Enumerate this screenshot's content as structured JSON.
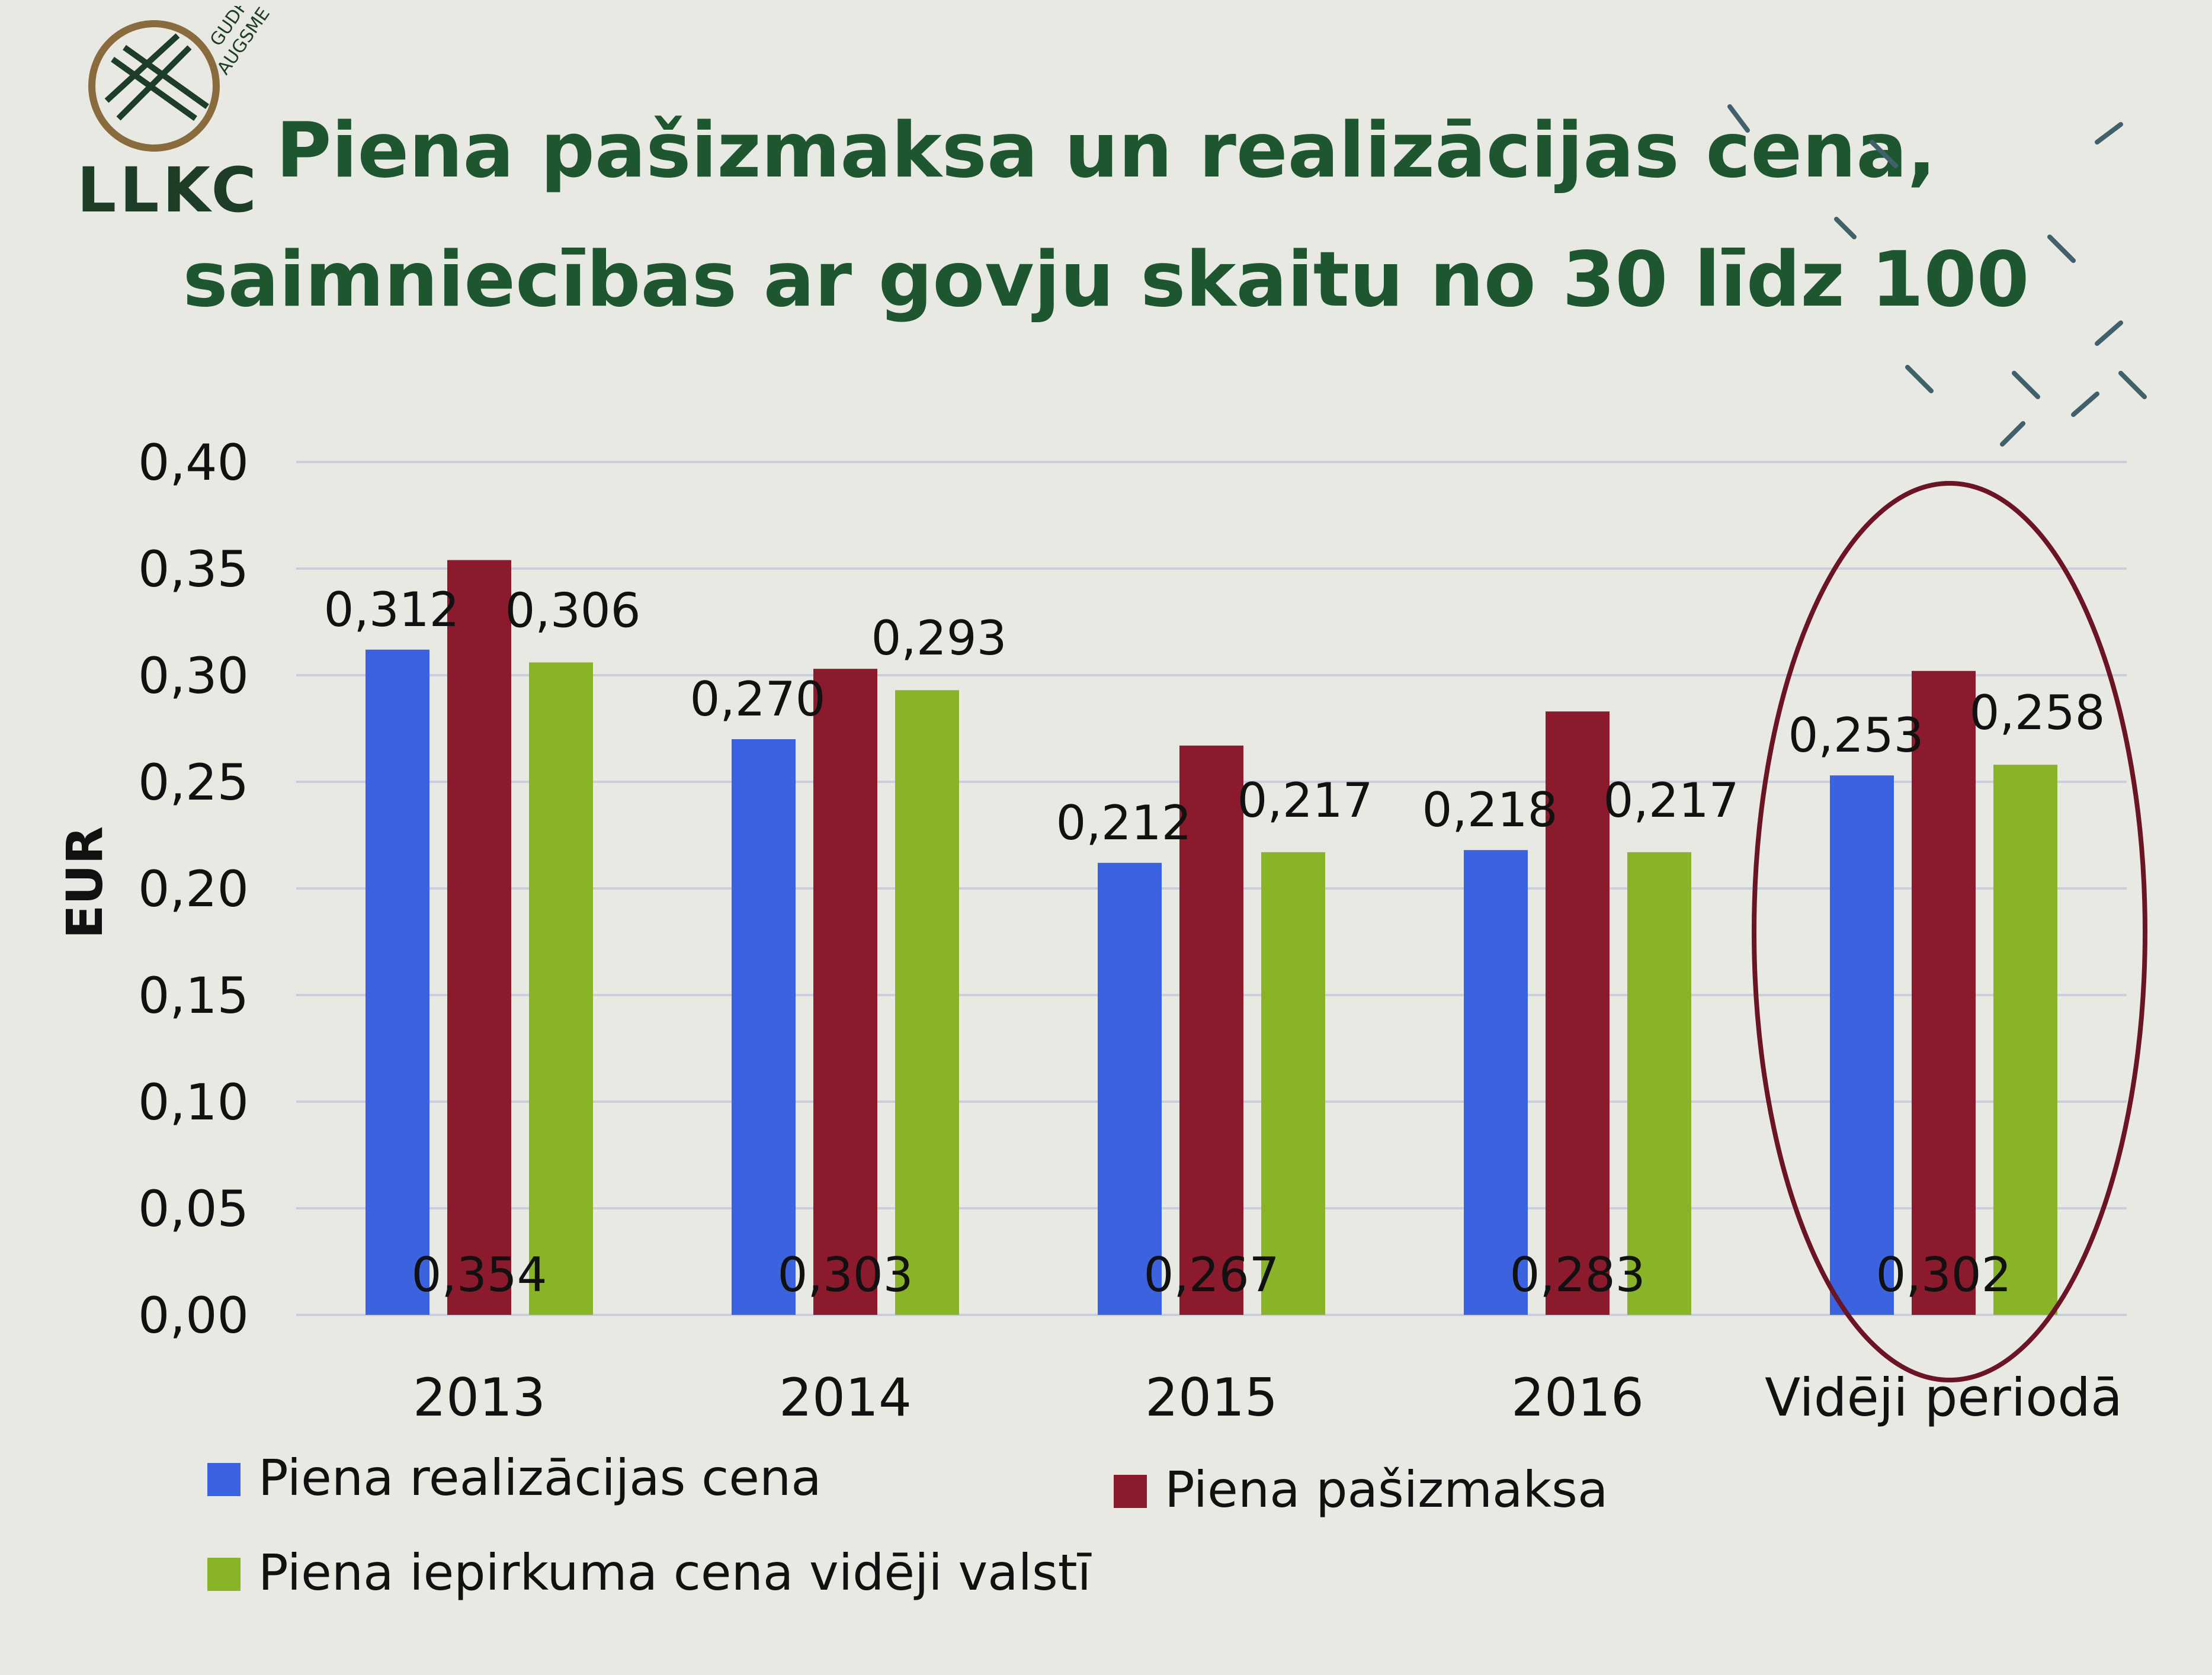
{
  "logo": {
    "text": "LLKC",
    "sub_text_1": "GUDRA",
    "sub_text_2": "AUGSME"
  },
  "title_lines": [
    "Piena pašizmaksa un realizācijas cena,",
    "saimniecības ar govju skaitu no 30 līdz 100"
  ],
  "chart_data": {
    "type": "bar",
    "title": "Piena pašizmaksa un realizācijas cena, saimniecības ar govju skaitu no 30 līdz 100",
    "ylabel": "EUR",
    "xlabel": "",
    "ylim": [
      0,
      0.4
    ],
    "y_ticks": [
      "0,00",
      "0,05",
      "0,10",
      "0,15",
      "0,20",
      "0,25",
      "0,30",
      "0,35",
      "0,40"
    ],
    "categories": [
      "2013",
      "2014",
      "2015",
      "2016",
      "Vidēji periodā"
    ],
    "grid": true,
    "legend_position": "bottom",
    "series": [
      {
        "name": "Piena realizācijas cena",
        "color": "#3b63e0",
        "values": [
          0.312,
          0.27,
          0.212,
          0.218,
          0.253
        ],
        "labels": [
          "0,312",
          "0,270",
          "0,212",
          "0,218",
          "0,253"
        ]
      },
      {
        "name": "Piena pašizmaksa",
        "color": "#8b1a2c",
        "values": [
          0.354,
          0.303,
          0.267,
          0.283,
          0.302
        ],
        "labels": [
          "0,354",
          "0,303",
          "0,267",
          "0,283",
          "0,302"
        ]
      },
      {
        "name": "Piena iepirkuma cena vidēji valstī",
        "color": "#8ab428",
        "values": [
          0.306,
          0.293,
          0.217,
          0.217,
          0.258
        ],
        "labels": [
          "0,306",
          "0,293",
          "0,217",
          "0,217",
          "0,258"
        ]
      }
    ],
    "highlight_category": "Vidēji periodā"
  },
  "colors": {
    "title": "#1e5630",
    "highlight_ellipse": "#6b1424",
    "gridline": "#c8cedd"
  }
}
